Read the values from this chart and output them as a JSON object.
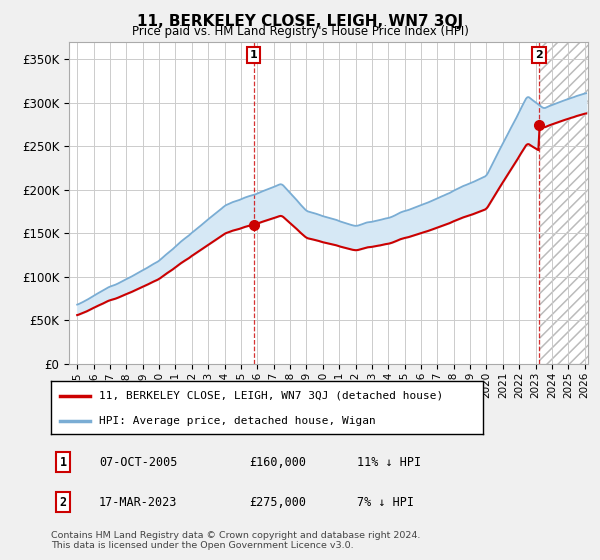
{
  "title": "11, BERKELEY CLOSE, LEIGH, WN7 3QJ",
  "subtitle": "Price paid vs. HM Land Registry's House Price Index (HPI)",
  "ylabel_ticks": [
    "£0",
    "£50K",
    "£100K",
    "£150K",
    "£200K",
    "£250K",
    "£300K",
    "£350K"
  ],
  "ytick_values": [
    0,
    50000,
    100000,
    150000,
    200000,
    250000,
    300000,
    350000
  ],
  "ylim": [
    0,
    370000
  ],
  "xlim_start": 1994.5,
  "xlim_end": 2026.2,
  "legend_label_red": "11, BERKELEY CLOSE, LEIGH, WN7 3QJ (detached house)",
  "legend_label_blue": "HPI: Average price, detached house, Wigan",
  "red_color": "#cc0000",
  "blue_color": "#7aadd4",
  "fill_color": "#d6e8f5",
  "annotation1_date": "07-OCT-2005",
  "annotation1_price": "£160,000",
  "annotation1_hpi": "11% ↓ HPI",
  "annotation2_date": "17-MAR-2023",
  "annotation2_price": "£275,000",
  "annotation2_hpi": "7% ↓ HPI",
  "sale1_x": 2005.77,
  "sale1_y": 160000,
  "sale2_x": 2023.21,
  "sale2_y": 275000,
  "footnote": "Contains HM Land Registry data © Crown copyright and database right 2024.\nThis data is licensed under the Open Government Licence v3.0.",
  "background_color": "#f0f0f0",
  "plot_background": "#ffffff",
  "grid_color": "#cccccc"
}
